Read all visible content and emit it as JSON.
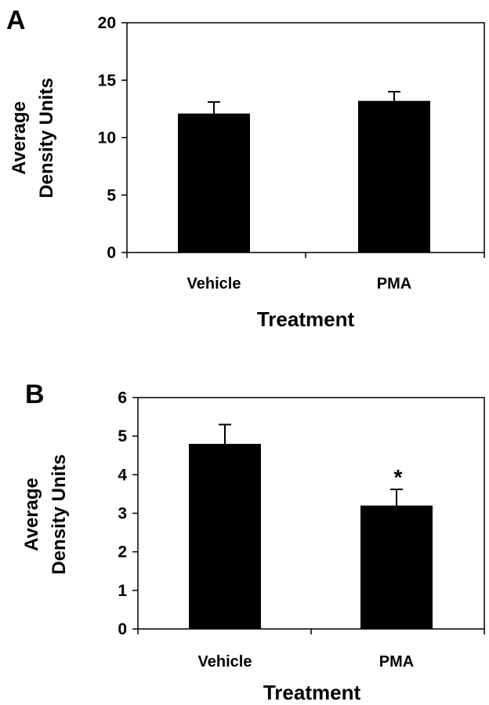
{
  "chart_data": [
    {
      "type": "bar",
      "panel_label": "A",
      "categories": [
        "Vehicle",
        "PMA"
      ],
      "values": [
        12.1,
        13.2
      ],
      "errors": [
        1.0,
        0.8
      ],
      "xlabel": "Treatment",
      "ylabel_lines": [
        "Average",
        "Density Units"
      ],
      "ylim": [
        0,
        20
      ],
      "yticks": [
        0,
        5,
        10,
        15,
        20
      ],
      "annotations": [
        "",
        ""
      ],
      "bar_color": "#000000",
      "grid": false
    },
    {
      "type": "bar",
      "panel_label": "B",
      "categories": [
        "Vehicle",
        "PMA"
      ],
      "values": [
        4.8,
        3.2
      ],
      "errors": [
        0.5,
        0.42
      ],
      "xlabel": "Treatment",
      "ylabel_lines": [
        "Average",
        "Density Units"
      ],
      "ylim": [
        0,
        6
      ],
      "yticks": [
        0,
        1,
        2,
        3,
        4,
        5,
        6
      ],
      "annotations": [
        "",
        "*"
      ],
      "bar_color": "#000000",
      "grid": false
    }
  ]
}
